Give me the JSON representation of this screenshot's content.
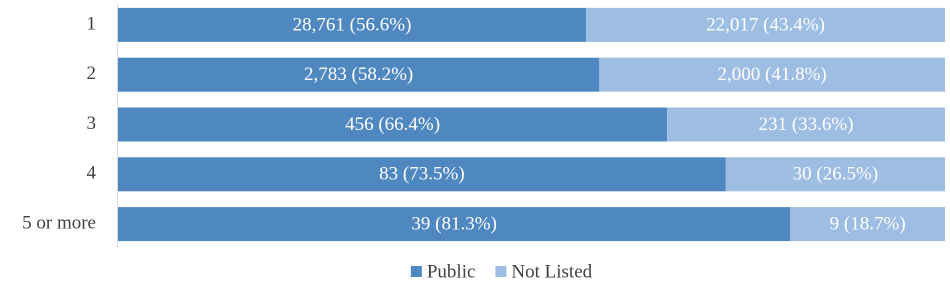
{
  "chart_data": {
    "type": "stacked-bar-horizontal",
    "categories": [
      "1",
      "2",
      "3",
      "4",
      "5 or more"
    ],
    "series": [
      {
        "name": "Public",
        "color": "#4f87c0",
        "values": [
          56.6,
          58.2,
          66.4,
          73.5,
          81.3
        ],
        "value_labels": [
          "28,761  (56.6%)",
          "2,783  (58.2%)",
          "456  (66.4%)",
          "83  (73.5%)",
          "39  (81.3%)"
        ]
      },
      {
        "name": "Not Listed",
        "color": "#9dbde3",
        "values": [
          43.4,
          41.8,
          33.6,
          26.5,
          18.7
        ],
        "value_labels": [
          "22,017  (43.4%)",
          "2,000  (41.8%)",
          "231  (33.6%)",
          "30  (26.5%)",
          "9  (18.7%)"
        ]
      }
    ],
    "xlim": [
      0,
      100
    ],
    "legend": "bottom"
  }
}
